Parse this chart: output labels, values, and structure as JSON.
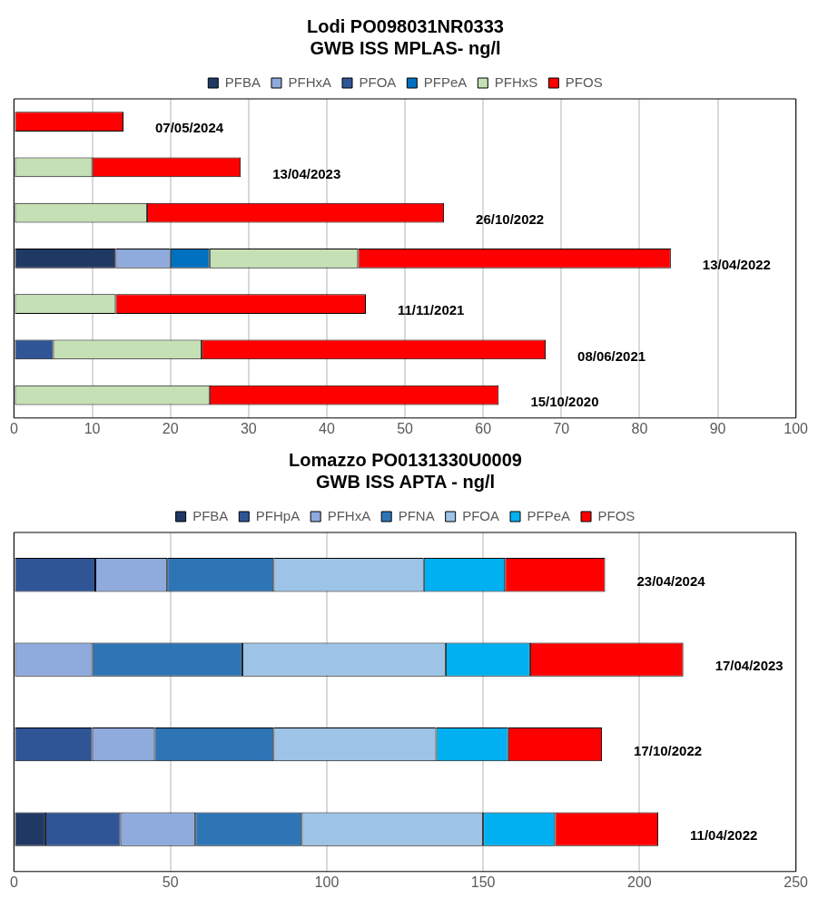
{
  "chart_data": [
    {
      "type": "bar",
      "orientation": "horizontal",
      "stacked": true,
      "title": "Lodi PO098031NR0333\nGWB ISS MPLAS- ng/l",
      "legend": "top",
      "grid": "x",
      "categories": [
        "07/05/2024",
        "13/04/2023",
        "26/10/2022",
        "13/04/2022",
        "11/11/2021",
        "08/06/2021",
        "15/10/2020"
      ],
      "xlim": [
        0,
        100
      ],
      "xticks": [
        0,
        10,
        20,
        30,
        40,
        50,
        60,
        70,
        80,
        90,
        100
      ],
      "series": [
        {
          "name": "PFBA",
          "color": "#203864",
          "values": [
            null,
            null,
            null,
            13,
            null,
            null,
            null
          ]
        },
        {
          "name": "PFHxA",
          "color": "#8faadc",
          "values": [
            null,
            null,
            null,
            7,
            null,
            null,
            null
          ]
        },
        {
          "name": "PFOA",
          "color": "#2f5597",
          "values": [
            null,
            null,
            null,
            null,
            null,
            5,
            null
          ]
        },
        {
          "name": "PFPeA",
          "color": "#0070c0",
          "values": [
            null,
            null,
            null,
            5,
            null,
            null,
            null
          ]
        },
        {
          "name": "PFHxS",
          "color": "#c5e0b4",
          "values": [
            null,
            10,
            17,
            19,
            13,
            19,
            25
          ]
        },
        {
          "name": "PFOS",
          "color": "#ff0000",
          "values": [
            14,
            19,
            38,
            40,
            32,
            44,
            37
          ]
        }
      ]
    },
    {
      "type": "bar",
      "orientation": "horizontal",
      "stacked": true,
      "title": "Lomazzo PO0131330U0009\nGWB ISS APTA - ng/l",
      "legend": "top",
      "grid": "x",
      "categories": [
        "23/04/2024",
        "17/04/2023",
        "17/10/2022",
        "11/04/2022"
      ],
      "xlim": [
        0,
        250
      ],
      "xticks": [
        0,
        50,
        100,
        150,
        200,
        250
      ],
      "series": [
        {
          "name": "PFBA",
          "color": "#203864",
          "values": [
            null,
            null,
            null,
            10
          ]
        },
        {
          "name": "PFHpA",
          "color": "#2f5597",
          "values": [
            26,
            null,
            25,
            24
          ]
        },
        {
          "name": "PFHxA",
          "color": "#8faadc",
          "values": [
            23,
            25,
            20,
            24
          ]
        },
        {
          "name": "PFNA",
          "color": "#2e75b6",
          "values": [
            34,
            48,
            38,
            34
          ]
        },
        {
          "name": "PFOA",
          "color": "#9dc3e6",
          "values": [
            48,
            65,
            52,
            58
          ]
        },
        {
          "name": "PFPeA",
          "color": "#00b0f0",
          "values": [
            26,
            27,
            23,
            23
          ]
        },
        {
          "name": "PFOS",
          "color": "#ff0000",
          "values": [
            32,
            49,
            30,
            33
          ]
        }
      ]
    }
  ]
}
